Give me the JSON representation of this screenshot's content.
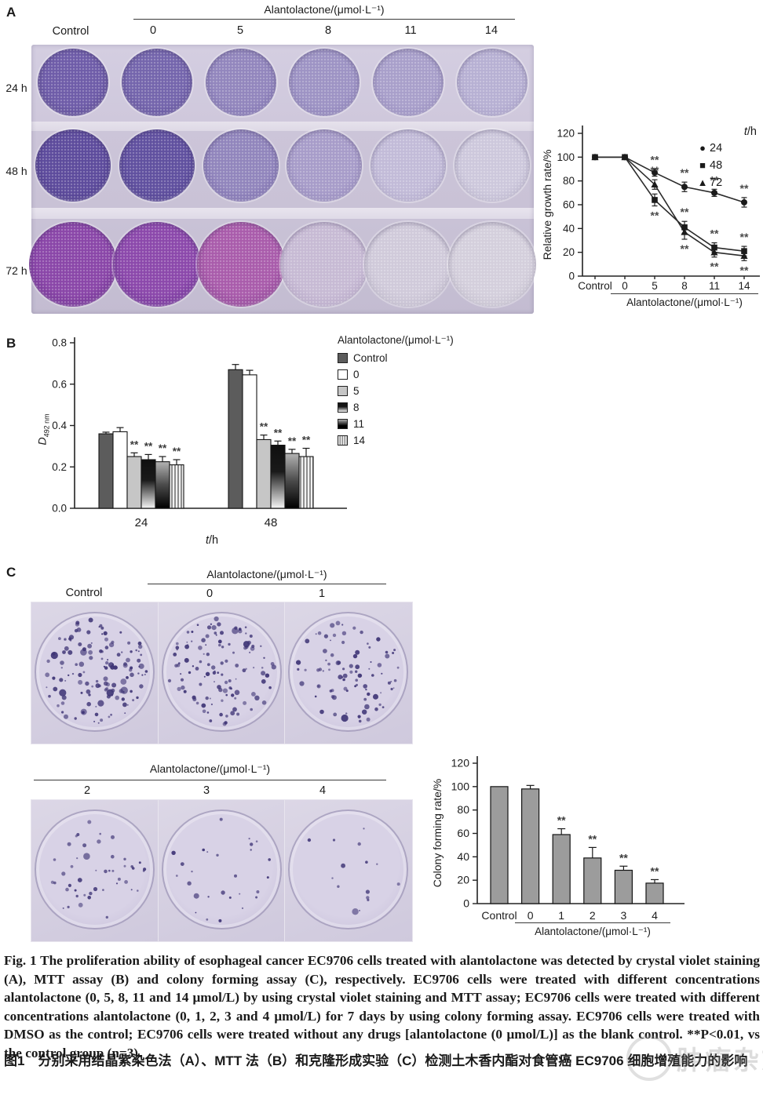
{
  "figure": {
    "panelA": {
      "label": "A",
      "control_label": "Control",
      "dose_axis_title": "Alantolactone/(μmol·L⁻¹)",
      "doses": [
        "0",
        "5",
        "8",
        "11",
        "14"
      ],
      "row_labels": [
        "24 h",
        "48 h",
        "72 h"
      ],
      "legend_t": "t",
      "legend_rest": "/h",
      "well_colors": [
        [
          [
            "#6e5ca8",
            "#5b4a92"
          ],
          [
            "#7465ac",
            "#61519a"
          ],
          [
            "#9286bd",
            "#7d6fae"
          ],
          [
            "#9d93c4",
            "#8a7eb6"
          ],
          [
            "#a89fca",
            "#978cbe"
          ],
          [
            "#b7b0d3",
            "#a79fc8"
          ]
        ],
        [
          [
            "#5d4b9c",
            "#4d3c8a"
          ],
          [
            "#60509f",
            "#4f3f8e"
          ],
          [
            "#9185bc",
            "#7b6dad"
          ],
          [
            "#a79cc9",
            "#9488bb"
          ],
          [
            "#c2bbd8",
            "#b2aacc"
          ],
          [
            "#cdc8dc",
            "#beb8d0"
          ]
        ],
        [
          [
            "#8a46a8",
            "#6f3292"
          ],
          [
            "#8b48ab",
            "#703496"
          ],
          [
            "#a95cab",
            "#8f4697"
          ],
          [
            "#c7bad4",
            "#b7a8c8"
          ],
          [
            "#d0cada",
            "#c2bcce"
          ],
          [
            "#d4cfdc",
            "#c6c1d0"
          ]
        ]
      ]
    },
    "panelB": {
      "label": "B",
      "ylabel_main": "D",
      "ylabel_sub": "492 nm",
      "xlabel_italic": "t",
      "xlabel_rest": "/h",
      "legend_title": "Alantolactone/(μmol·L⁻¹)",
      "legend_items": [
        {
          "label": "Control",
          "fill": "#5c5c5c"
        },
        {
          "label": "0",
          "fill": "#ffffff"
        },
        {
          "label": "5",
          "fill": "#c6c6c6"
        },
        {
          "label": "8",
          "fill": "grad-down"
        },
        {
          "label": "11",
          "fill": "grad-up"
        },
        {
          "label": "14",
          "fill": "stripes"
        }
      ]
    },
    "panelC": {
      "label": "C",
      "control_label": "Control",
      "dose_axis_title": "Alantolactone/(μmol·L⁻¹)",
      "top_doses": [
        "0",
        "1"
      ],
      "bottom_doses": [
        "2",
        "3",
        "4"
      ],
      "colony_counts": [
        135,
        118,
        88,
        46,
        27,
        15
      ]
    },
    "caption_en": "Fig. 1   The proliferation ability of esophageal cancer EC9706 cells treated with alantolactone was detected by crystal violet staining (A), MTT assay (B) and colony forming assay (C), respectively. EC9706 cells were treated with different concentrations alantolactone (0, 5, 8, 11 and 14 μmol/L) by using crystal violet staining and MTT assay; EC9706 cells were treated with different concentrations alantolactone (0, 1, 2, 3 and 4 μmol/L) for 7 days by using colony forming assay. EC9706 cells were treated with DMSO as the control; EC9706 cells were treated without any drugs [alantolactone (0 μmol/L)] as the blank control. **P<0.01, vs the control group (n=3).",
    "caption_zh": "图1　分别采用结晶紫染色法（A）、MTT 法（B）和克隆形成实验（C）检测土木香内酯对食管癌 EC9706 细胞增殖能力的影响",
    "watermark": "肿瘤杂志"
  },
  "chart_data": [
    {
      "id": "growth_rate_line",
      "type": "line",
      "ylabel": "Relative growth rate/%",
      "ylim": [
        0,
        120
      ],
      "yticks": [
        0,
        20,
        40,
        60,
        80,
        100,
        120
      ],
      "categories": [
        "Control",
        "0",
        "5",
        "8",
        "11",
        "14"
      ],
      "x_axis_title": "Alantolactone/(μmol·L⁻¹)",
      "legend_title": "t/h",
      "legend_position": "top-right",
      "grid": false,
      "sig_label": "**",
      "sig_from_index": 2,
      "series": [
        {
          "name": "24",
          "marker": "circle",
          "values": [
            100,
            100,
            87,
            75,
            70,
            62
          ],
          "errors": [
            0,
            2,
            3,
            4,
            3,
            4
          ]
        },
        {
          "name": "48",
          "marker": "square",
          "values": [
            100,
            100,
            64,
            41,
            24,
            21
          ],
          "errors": [
            0,
            2,
            5,
            5,
            4,
            4
          ]
        },
        {
          "name": "72",
          "marker": "triangle",
          "values": [
            100,
            100,
            77,
            37,
            20,
            17
          ],
          "errors": [
            0,
            2,
            4,
            6,
            4,
            4
          ]
        }
      ]
    },
    {
      "id": "mtt_assay_bars",
      "type": "bar",
      "ylabel": "D492 nm",
      "xlabel": "t/h",
      "ylim": [
        0,
        0.8
      ],
      "yticks": [
        0,
        0.2,
        0.4,
        0.6,
        0.8
      ],
      "groups": [
        "24",
        "48"
      ],
      "legend_title": "Alantolactone/(μmol·L⁻¹)",
      "grid": false,
      "sig_label": "**",
      "series": [
        {
          "name": "Control",
          "fill": "#5c5c5c",
          "values": [
            0.36,
            0.67
          ],
          "errors": [
            0.008,
            0.025
          ],
          "sig": false
        },
        {
          "name": "0",
          "fill": "#ffffff",
          "values": [
            0.37,
            0.645
          ],
          "errors": [
            0.02,
            0.022
          ],
          "sig": false
        },
        {
          "name": "5",
          "fill": "#c6c6c6",
          "values": [
            0.25,
            0.332
          ],
          "errors": [
            0.018,
            0.022
          ],
          "sig": true
        },
        {
          "name": "8",
          "fill": "grad-down",
          "values": [
            0.235,
            0.305
          ],
          "errors": [
            0.025,
            0.02
          ],
          "sig": true
        },
        {
          "name": "11",
          "fill": "grad-up",
          "values": [
            0.225,
            0.265
          ],
          "errors": [
            0.025,
            0.02
          ],
          "sig": true
        },
        {
          "name": "14",
          "fill": "stripes",
          "values": [
            0.21,
            0.25
          ],
          "errors": [
            0.025,
            0.04
          ],
          "sig": true
        }
      ]
    },
    {
      "id": "colony_forming_bars",
      "type": "bar",
      "ylabel": "Colony forming rate/%",
      "ylim": [
        0,
        120
      ],
      "yticks": [
        0,
        20,
        40,
        60,
        80,
        100,
        120
      ],
      "categories": [
        "Control",
        "0",
        "1",
        "2",
        "3",
        "4"
      ],
      "values": [
        100,
        98,
        59,
        39,
        28.5,
        17.5
      ],
      "errors": [
        0,
        3,
        5,
        9,
        3.5,
        3
      ],
      "bar_fill": "#9c9c9c",
      "x_axis_title": "Alantolactone/(μmol·L⁻¹)",
      "grid": false,
      "sig_label": "**",
      "sig_from_index": 2
    }
  ]
}
